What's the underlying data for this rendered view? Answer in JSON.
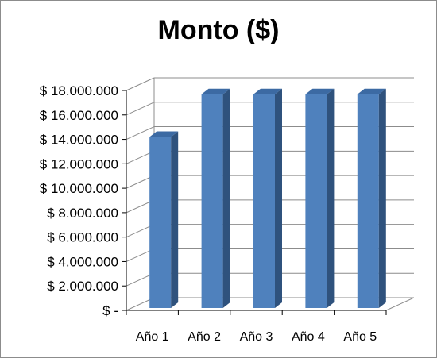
{
  "chart_data": {
    "type": "bar",
    "title": "Monto ($)",
    "categories": [
      "Año 1",
      "Año 2",
      "Año 3",
      "Año 4",
      "Año 5"
    ],
    "values": [
      14000000,
      17500000,
      17500000,
      17500000,
      17500000
    ],
    "ylim": [
      0,
      18000000
    ],
    "y_ticks": [
      0,
      2000000,
      4000000,
      6000000,
      8000000,
      10000000,
      12000000,
      14000000,
      16000000,
      18000000
    ],
    "y_tick_labels": [
      "$ -",
      "$ 2.000.000",
      "$ 4.000.000",
      "$ 6.000.000",
      "$ 8.000.000",
      "$ 10.000.000",
      "$ 12.000.000",
      "$ 14.000.000",
      "$ 16.000.000",
      "$ 18.000.000"
    ],
    "xlabel": "",
    "ylabel": "",
    "grid": true,
    "style": "3d-column",
    "colors": {
      "bar_front": "#4f81bd",
      "bar_side": "#2f527d",
      "bar_top": "#3c6aa3",
      "grid": "#8c8c8c"
    }
  }
}
